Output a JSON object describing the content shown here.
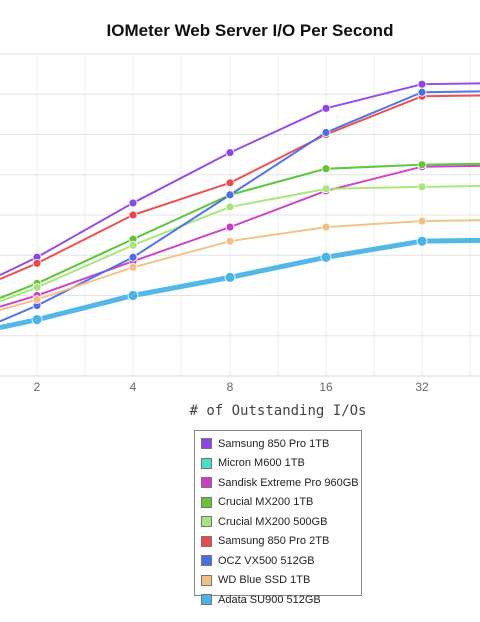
{
  "chart_data": {
    "type": "line",
    "title": "IOMeter Web Server I/O Per Second",
    "xlabel": "# of Outstanding I/Os",
    "ylabel": "",
    "categories": [
      "2",
      "4",
      "8",
      "16",
      "32"
    ],
    "ylim": [
      0,
      8
    ],
    "grid": true,
    "legend_placement": "bottom",
    "series": [
      {
        "name": "Samsung 850 Pro 1TB",
        "color": "#8e44e6",
        "values": [
          2.95,
          4.3,
          5.55,
          6.65,
          7.25
        ]
      },
      {
        "name": "Micron M600 1TB",
        "color": "#46e0c8",
        "values": [
          2.3,
          3.4,
          4.5,
          5.15,
          5.25
        ]
      },
      {
        "name": "Sandisk Extreme Pro 960GB",
        "color": "#c93dc8",
        "values": [
          2.0,
          2.85,
          3.7,
          4.6,
          5.2
        ]
      },
      {
        "name": "Crucial MX200 1TB",
        "color": "#66c434",
        "values": [
          2.3,
          3.4,
          4.5,
          5.15,
          5.25
        ]
      },
      {
        "name": "Crucial MX200 500GB",
        "color": "#a6e67a",
        "values": [
          2.2,
          3.25,
          4.2,
          4.65,
          4.7
        ]
      },
      {
        "name": "Samsung 850 Pro 2TB",
        "color": "#e84a4a",
        "values": [
          2.8,
          4.0,
          4.8,
          6.0,
          6.95
        ]
      },
      {
        "name": "OCZ VX500 512GB",
        "color": "#4a6ee8",
        "values": [
          1.75,
          2.95,
          4.5,
          6.05,
          7.05
        ]
      },
      {
        "name": "WD Blue SSD 1TB",
        "color": "#f0c080",
        "values": [
          1.9,
          2.7,
          3.35,
          3.7,
          3.85
        ]
      },
      {
        "name": "Adata SU900 512GB",
        "color": "#4ab4e6",
        "values": [
          1.4,
          2.0,
          2.45,
          2.95,
          3.35
        ]
      }
    ]
  }
}
